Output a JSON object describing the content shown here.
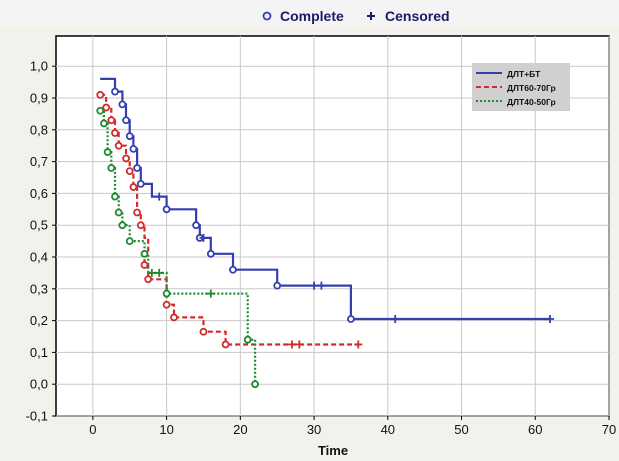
{
  "chart_data": {
    "type": "line",
    "subtype": "kaplan-meier step",
    "xlabel": "Time",
    "ylabel": "",
    "xlim": [
      -5,
      70
    ],
    "ylim": [
      -0.1,
      1.0
    ],
    "x_ticks": [
      "0",
      "10",
      "20",
      "30",
      "40",
      "50",
      "60",
      "70"
    ],
    "y_ticks": [
      "-0,1",
      "0,0",
      "0,1",
      "0,2",
      "0,3",
      "0,4",
      "0,5",
      "0,6",
      "0,7",
      "0,8",
      "0,9",
      "1,0"
    ],
    "grid": true,
    "top_legend": {
      "complete_label": "Complete",
      "censored_label": "Censored",
      "complete_symbol": "o",
      "censored_symbol": "+"
    },
    "legend_position": "top-right",
    "series": [
      {
        "name": "ДЛТ+БТ",
        "color": "#3440b0",
        "dash": "solid",
        "steps": [
          [
            1,
            0.96
          ],
          [
            3,
            0.92
          ],
          [
            4,
            0.88
          ],
          [
            4.5,
            0.83
          ],
          [
            5,
            0.78
          ],
          [
            5.5,
            0.74
          ],
          [
            6,
            0.68
          ],
          [
            6.5,
            0.63
          ],
          [
            8,
            0.59
          ],
          [
            10,
            0.55
          ],
          [
            14,
            0.5
          ],
          [
            14.5,
            0.46
          ],
          [
            16,
            0.41
          ],
          [
            19,
            0.36
          ],
          [
            25,
            0.31
          ],
          [
            35,
            0.205
          ]
        ],
        "end_x": 62,
        "complete_points": [
          [
            3,
            0.92
          ],
          [
            4,
            0.88
          ],
          [
            4.5,
            0.83
          ],
          [
            5,
            0.78
          ],
          [
            5.5,
            0.74
          ],
          [
            6,
            0.68
          ],
          [
            6.5,
            0.63
          ],
          [
            10,
            0.55
          ],
          [
            14,
            0.5
          ],
          [
            14.5,
            0.46
          ],
          [
            16,
            0.41
          ],
          [
            19,
            0.36
          ],
          [
            25,
            0.31
          ],
          [
            35,
            0.205
          ]
        ],
        "censored_points": [
          [
            9,
            0.59
          ],
          [
            15,
            0.46
          ],
          [
            30,
            0.31
          ],
          [
            31,
            0.31
          ],
          [
            41,
            0.205
          ],
          [
            62,
            0.205
          ]
        ]
      },
      {
        "name": "ДЛТ60-70Гр",
        "color": "#d42a2a",
        "dash": "5,3",
        "steps": [
          [
            1,
            0.91
          ],
          [
            1.8,
            0.87
          ],
          [
            2.5,
            0.83
          ],
          [
            3,
            0.79
          ],
          [
            3.5,
            0.75
          ],
          [
            4.5,
            0.71
          ],
          [
            5,
            0.67
          ],
          [
            5.5,
            0.62
          ],
          [
            6,
            0.54
          ],
          [
            6.5,
            0.5
          ],
          [
            7,
            0.46
          ],
          [
            7.5,
            0.41
          ],
          [
            7,
            0.375
          ],
          [
            7.5,
            0.33
          ],
          [
            10,
            0.25
          ],
          [
            11,
            0.21
          ],
          [
            15,
            0.165
          ],
          [
            18,
            0.125
          ]
        ],
        "end_x": 36,
        "complete_points": [
          [
            1,
            0.91
          ],
          [
            1.8,
            0.87
          ],
          [
            2.5,
            0.83
          ],
          [
            3,
            0.79
          ],
          [
            3.5,
            0.75
          ],
          [
            4.5,
            0.71
          ],
          [
            5,
            0.67
          ],
          [
            5.5,
            0.62
          ],
          [
            6,
            0.54
          ],
          [
            6.5,
            0.5
          ],
          [
            7,
            0.375
          ],
          [
            7.5,
            0.33
          ],
          [
            10,
            0.25
          ],
          [
            11,
            0.21
          ],
          [
            15,
            0.165
          ],
          [
            18,
            0.125
          ]
        ],
        "censored_points": [
          [
            27,
            0.125
          ],
          [
            28,
            0.125
          ],
          [
            36,
            0.125
          ]
        ]
      },
      {
        "name": "ДЛТ40-50Гр",
        "color": "#1e8a2e",
        "dash": "2,2",
        "steps": [
          [
            1,
            0.86
          ],
          [
            1.5,
            0.82
          ],
          [
            2,
            0.73
          ],
          [
            2.5,
            0.68
          ],
          [
            3,
            0.59
          ],
          [
            3.5,
            0.54
          ],
          [
            4,
            0.5
          ],
          [
            5,
            0.45
          ],
          [
            7,
            0.41
          ],
          [
            7.5,
            0.35
          ],
          [
            10,
            0.285
          ],
          [
            21,
            0.14
          ],
          [
            22,
            0.0
          ]
        ],
        "end_x": 22,
        "complete_points": [
          [
            1,
            0.86
          ],
          [
            1.5,
            0.82
          ],
          [
            2,
            0.73
          ],
          [
            2.5,
            0.68
          ],
          [
            3,
            0.59
          ],
          [
            3.5,
            0.54
          ],
          [
            4,
            0.5
          ],
          [
            5,
            0.45
          ],
          [
            7,
            0.41
          ],
          [
            10,
            0.285
          ],
          [
            21,
            0.14
          ],
          [
            22,
            0.0
          ]
        ],
        "censored_points": [
          [
            8,
            0.35
          ],
          [
            9,
            0.35
          ],
          [
            16,
            0.285
          ]
        ]
      }
    ]
  }
}
